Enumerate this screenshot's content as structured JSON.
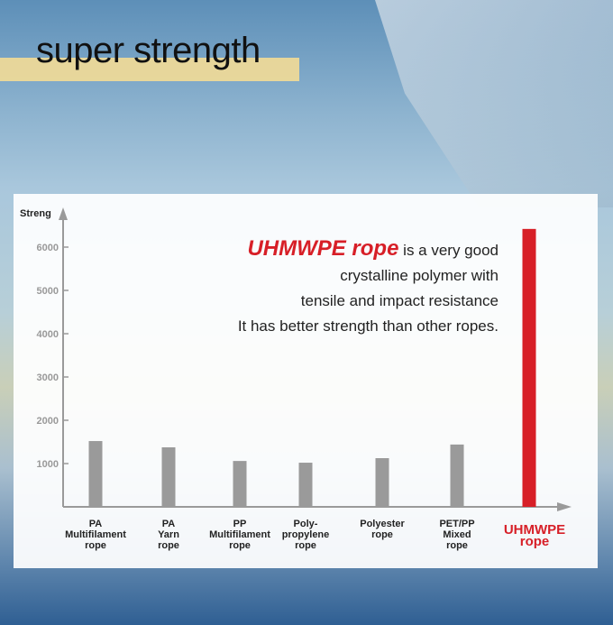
{
  "header": {
    "title": "super strength"
  },
  "description": {
    "highlight": "UHMWPE rope",
    "line1_rest": " is a very good",
    "line2": "crystalline polymer with",
    "line3": "tensile and impact resistance",
    "line4": "It has better strength than other ropes."
  },
  "colors": {
    "bar": "#9a9a9a",
    "highlight_bar": "#d71f27",
    "axis": "#9a9a9a"
  },
  "chart_data": {
    "type": "bar",
    "ylabel": "Streng",
    "ylim": [
      0,
      6700
    ],
    "yticks": [
      1000,
      2000,
      3000,
      4000,
      5000,
      6000
    ],
    "grid": false,
    "categories": [
      "PA Multifilament rope",
      "PA Yarn rope",
      "PP Multifilament rope",
      "Poly-propylene rope",
      "Polyester rope",
      "PET/PP Mixed rope",
      "UHMWPE rope"
    ],
    "category_lines": [
      [
        "PA",
        "Multifilament",
        "rope"
      ],
      [
        "PA",
        "Yarn",
        "rope"
      ],
      [
        "PP",
        "Multifilament",
        "rope"
      ],
      [
        "Poly-",
        "propylene",
        "rope"
      ],
      [
        "Polyester",
        "rope"
      ],
      [
        "PET/PP",
        "Mixed",
        "rope"
      ],
      [
        "UHMWPE",
        "rope"
      ]
    ],
    "values": [
      1520,
      1375,
      1060,
      1020,
      1125,
      1440,
      6420
    ],
    "highlight_index": 6
  }
}
